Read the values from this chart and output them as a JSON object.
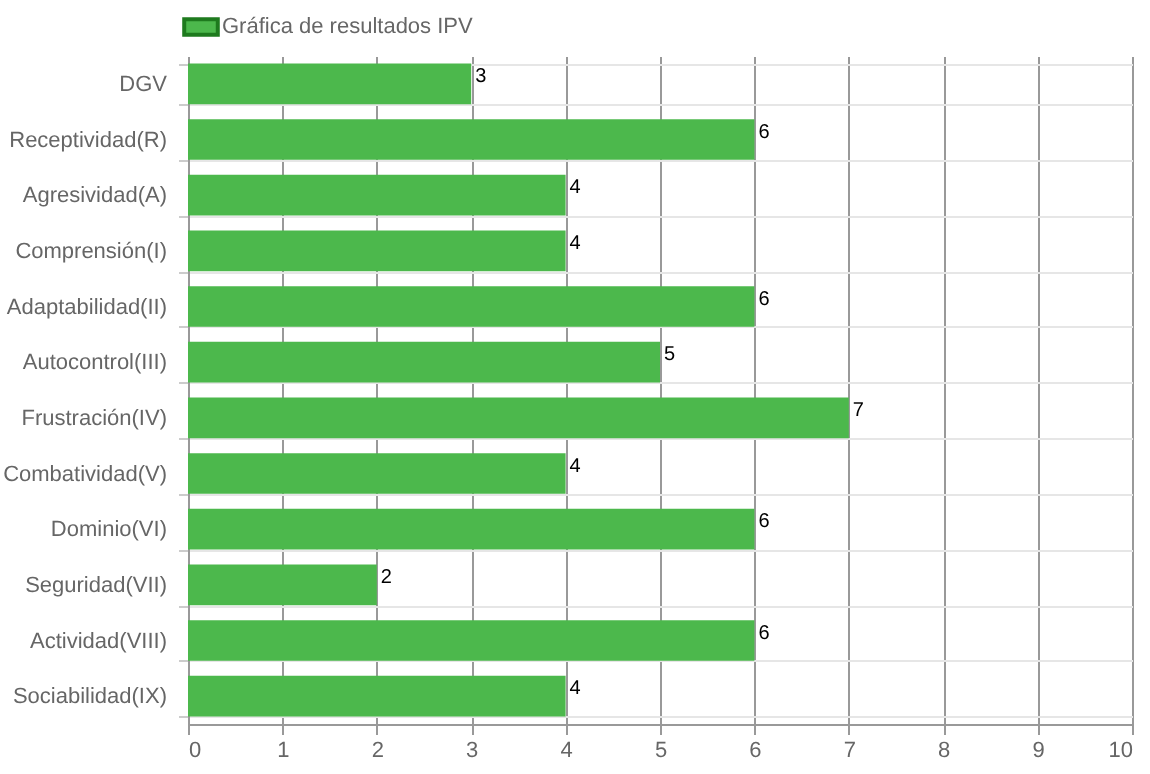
{
  "chart_data": {
    "type": "bar",
    "orientation": "horizontal",
    "categories": [
      "DGV",
      "Receptividad(R)",
      "Agresividad(A)",
      "Comprensión(I)",
      "Adaptabilidad(II)",
      "Autocontrol(III)",
      "Frustración(IV)",
      "Combatividad(V)",
      "Dominio(VI)",
      "Seguridad(VII)",
      "Actividad(VIII)",
      "Sociabilidad(IX)"
    ],
    "series": [
      {
        "name": "Gráfica de resultados IPV",
        "color": "#4cb84c",
        "values": [
          3,
          6,
          4,
          4,
          6,
          5,
          7,
          4,
          6,
          2,
          6,
          4
        ]
      }
    ],
    "xlim": [
      0,
      10
    ],
    "xticks": [
      0,
      1,
      2,
      3,
      4,
      5,
      6,
      7,
      8,
      9,
      10
    ],
    "grid": true,
    "legend": "top",
    "data_labels": true
  }
}
